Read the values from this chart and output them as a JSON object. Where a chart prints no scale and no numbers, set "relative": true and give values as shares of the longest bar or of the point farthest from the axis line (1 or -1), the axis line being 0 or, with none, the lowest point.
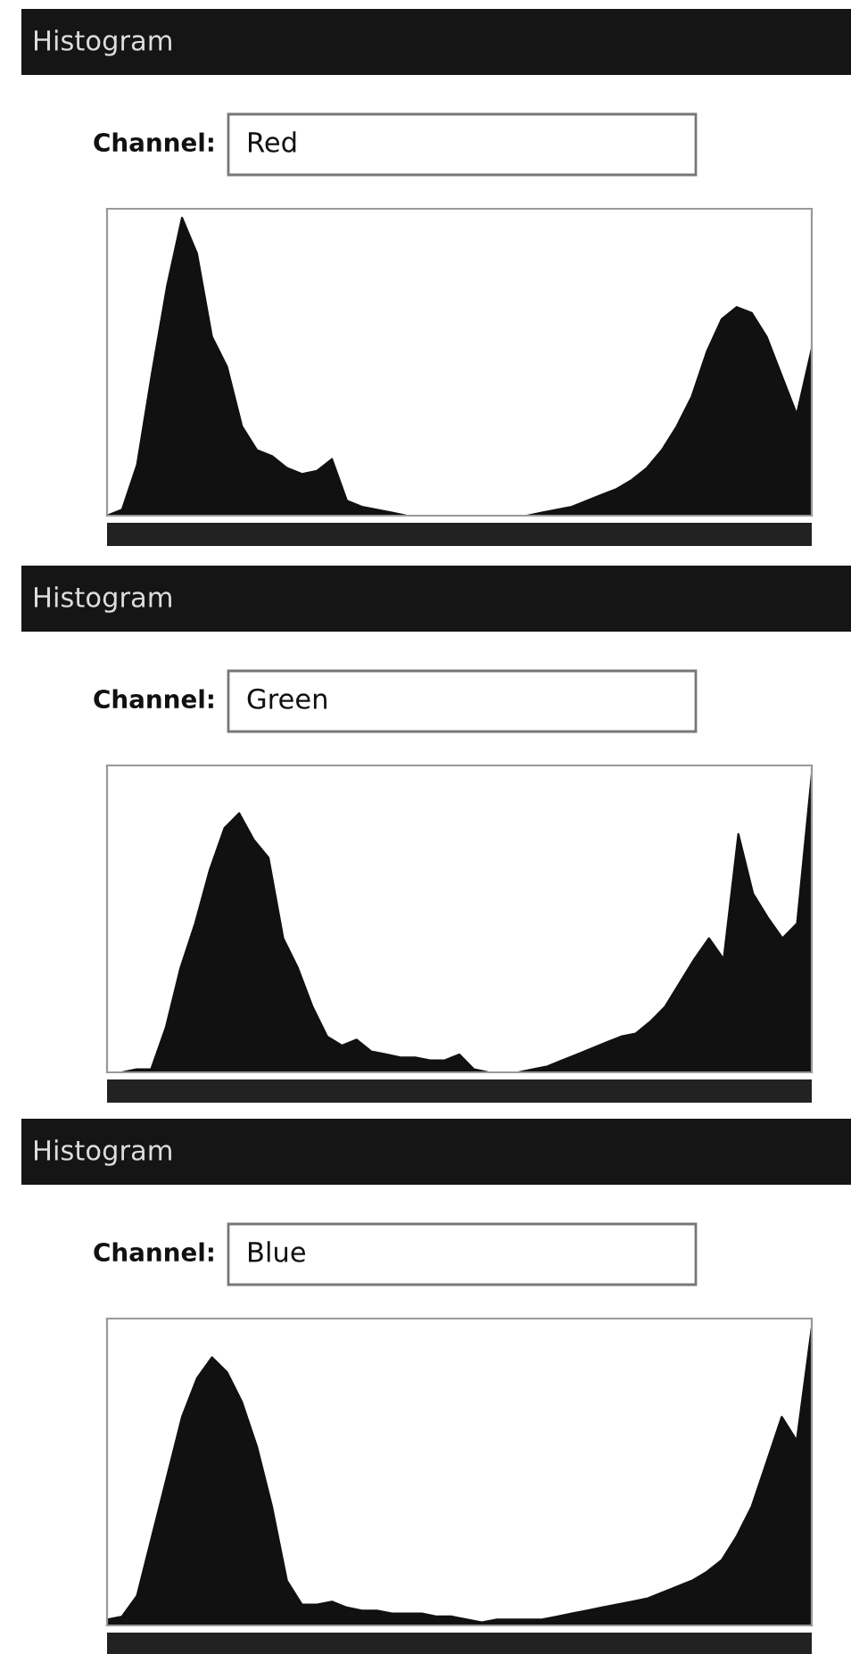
{
  "chart_data": [
    {
      "type": "area",
      "title": "Histogram",
      "subtitle": "Channel:",
      "annotations": [
        "Red"
      ],
      "relative": true,
      "categories": [
        null,
        null,
        null,
        null,
        null,
        null,
        null,
        null,
        null,
        null,
        null,
        null,
        null,
        null,
        null,
        null,
        null,
        null,
        null,
        null,
        null,
        null,
        null,
        null,
        null,
        null,
        null,
        null,
        null,
        null,
        null,
        null,
        null,
        null,
        null,
        null,
        null,
        null,
        null,
        null,
        null,
        null,
        null,
        null,
        null,
        null,
        null,
        null
      ],
      "series": [
        {
          "color": "#111111",
          "values": [
            0,
            0.02,
            0.17,
            0.48,
            0.77,
            1.0,
            0.88,
            0.6,
            0.5,
            0.3,
            0.22,
            0.2,
            0.16,
            0.14,
            0.15,
            0.19,
            0.05,
            0.03,
            0.02,
            0.01,
            0,
            0,
            0,
            0,
            0,
            0,
            0,
            0,
            0,
            0.01,
            0.02,
            0.03,
            0.05,
            0.07,
            0.09,
            0.12,
            0.16,
            0.22,
            0.3,
            0.4,
            0.55,
            0.66,
            0.7,
            0.68,
            0.6,
            0.47,
            0.34,
            0.56
          ]
        }
      ]
    },
    {
      "type": "area",
      "title": "Histogram",
      "subtitle": "Channel:",
      "annotations": [
        "Green"
      ],
      "relative": true,
      "categories": [
        null,
        null,
        null,
        null,
        null,
        null,
        null,
        null,
        null,
        null,
        null,
        null,
        null,
        null,
        null,
        null,
        null,
        null,
        null,
        null,
        null,
        null,
        null,
        null,
        null,
        null,
        null,
        null,
        null,
        null,
        null,
        null,
        null,
        null,
        null,
        null,
        null,
        null,
        null,
        null,
        null,
        null,
        null,
        null,
        null,
        null,
        null,
        null,
        null
      ],
      "series": [
        {
          "color": "#111111",
          "values": [
            0,
            0,
            0.01,
            0.01,
            0.15,
            0.35,
            0.5,
            0.68,
            0.82,
            0.87,
            0.78,
            0.72,
            0.45,
            0.35,
            0.22,
            0.12,
            0.09,
            0.11,
            0.07,
            0.06,
            0.05,
            0.05,
            0.04,
            0.04,
            0.06,
            0.01,
            0,
            0,
            0,
            0.01,
            0.02,
            0.04,
            0.06,
            0.08,
            0.1,
            0.12,
            0.13,
            0.17,
            0.22,
            0.3,
            0.38,
            0.45,
            0.38,
            0.8,
            0.6,
            0.52,
            0.45,
            0.5,
            1.0
          ]
        }
      ]
    },
    {
      "type": "area",
      "title": "Histogram",
      "subtitle": "Channel:",
      "annotations": [
        "Blue"
      ],
      "relative": true,
      "categories": [
        null,
        null,
        null,
        null,
        null,
        null,
        null,
        null,
        null,
        null,
        null,
        null,
        null,
        null,
        null,
        null,
        null,
        null,
        null,
        null,
        null,
        null,
        null,
        null,
        null,
        null,
        null,
        null,
        null,
        null,
        null,
        null,
        null,
        null,
        null,
        null,
        null,
        null,
        null,
        null,
        null,
        null,
        null,
        null,
        null,
        null,
        null,
        null
      ],
      "series": [
        {
          "color": "#111111",
          "values": [
            0.02,
            0.03,
            0.1,
            0.3,
            0.5,
            0.7,
            0.83,
            0.9,
            0.85,
            0.75,
            0.6,
            0.4,
            0.15,
            0.07,
            0.07,
            0.08,
            0.06,
            0.05,
            0.05,
            0.04,
            0.04,
            0.04,
            0.03,
            0.03,
            0.02,
            0.01,
            0.02,
            0.02,
            0.02,
            0.02,
            0.03,
            0.04,
            0.05,
            0.06,
            0.07,
            0.08,
            0.09,
            0.11,
            0.13,
            0.15,
            0.18,
            0.22,
            0.3,
            0.4,
            0.55,
            0.7,
            0.62,
            1.0
          ]
        }
      ]
    }
  ]
}
